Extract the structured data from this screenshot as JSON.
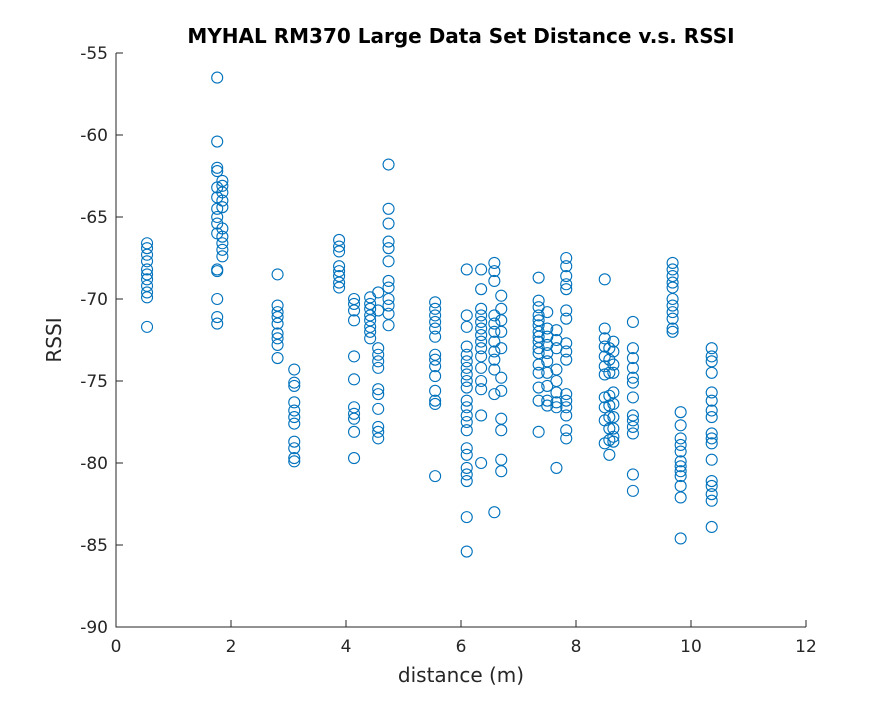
{
  "chart_data": {
    "type": "scatter",
    "title": "MYHAL RM370 Large Data Set Distance v.s. RSSI",
    "xlabel": "distance (m)",
    "ylabel": "RSSI",
    "xlim": [
      0,
      12
    ],
    "ylim": [
      -90,
      -55
    ],
    "x_ticks": [
      "0",
      "2",
      "4",
      "6",
      "8",
      "10",
      "12"
    ],
    "y_ticks": [
      "-55",
      "-60",
      "-65",
      "-70",
      "-75",
      "-80",
      "-85",
      "-90"
    ],
    "grid": false,
    "legend": "none",
    "marker": "open-circle",
    "color": "#0072BD",
    "series": [
      {
        "points": [
          [
            0.54,
            -66.6
          ],
          [
            0.54,
            -66.9
          ],
          [
            0.54,
            -67.3
          ],
          [
            0.54,
            -67.7
          ],
          [
            0.54,
            -68.2
          ],
          [
            0.54,
            -68.5
          ],
          [
            0.54,
            -68.8
          ],
          [
            0.54,
            -69.2
          ],
          [
            0.54,
            -69.6
          ],
          [
            0.54,
            -69.9
          ],
          [
            0.54,
            -71.7
          ],
          [
            1.76,
            -56.5
          ],
          [
            1.76,
            -60.4
          ],
          [
            1.76,
            -62.0
          ],
          [
            1.76,
            -62.2
          ],
          [
            1.76,
            -63.2
          ],
          [
            1.76,
            -63.8
          ],
          [
            1.76,
            -64.5
          ],
          [
            1.76,
            -65.0
          ],
          [
            1.76,
            -65.4
          ],
          [
            1.76,
            -66.0
          ],
          [
            1.76,
            -68.2
          ],
          [
            1.76,
            -68.3
          ],
          [
            1.76,
            -70.0
          ],
          [
            1.76,
            -71.1
          ],
          [
            1.76,
            -71.5
          ],
          [
            1.85,
            -62.8
          ],
          [
            1.85,
            -63.1
          ],
          [
            1.85,
            -63.5
          ],
          [
            1.85,
            -64.0
          ],
          [
            1.85,
            -64.4
          ],
          [
            1.85,
            -65.7
          ],
          [
            1.85,
            -66.2
          ],
          [
            1.85,
            -66.6
          ],
          [
            1.85,
            -67.0
          ],
          [
            1.85,
            -67.4
          ],
          [
            2.81,
            -68.5
          ],
          [
            2.81,
            -70.4
          ],
          [
            2.81,
            -70.8
          ],
          [
            2.81,
            -71.1
          ],
          [
            2.81,
            -71.5
          ],
          [
            2.81,
            -72.1
          ],
          [
            2.81,
            -72.4
          ],
          [
            2.81,
            -72.8
          ],
          [
            2.81,
            -73.6
          ],
          [
            3.1,
            -74.3
          ],
          [
            3.1,
            -75.1
          ],
          [
            3.1,
            -75.3
          ],
          [
            3.1,
            -76.3
          ],
          [
            3.1,
            -76.8
          ],
          [
            3.1,
            -77.2
          ],
          [
            3.1,
            -77.6
          ],
          [
            3.1,
            -78.7
          ],
          [
            3.1,
            -79.1
          ],
          [
            3.1,
            -79.7
          ],
          [
            3.1,
            -79.9
          ],
          [
            3.88,
            -66.4
          ],
          [
            3.88,
            -66.8
          ],
          [
            3.88,
            -67.1
          ],
          [
            3.88,
            -68.0
          ],
          [
            3.88,
            -68.3
          ],
          [
            3.88,
            -68.6
          ],
          [
            3.88,
            -69.0
          ],
          [
            3.88,
            -69.3
          ],
          [
            4.14,
            -70.0
          ],
          [
            4.14,
            -70.3
          ],
          [
            4.14,
            -70.7
          ],
          [
            4.14,
            -71.3
          ],
          [
            4.14,
            -73.5
          ],
          [
            4.14,
            -74.9
          ],
          [
            4.14,
            -76.6
          ],
          [
            4.14,
            -77.0
          ],
          [
            4.14,
            -77.3
          ],
          [
            4.14,
            -78.1
          ],
          [
            4.14,
            -79.7
          ],
          [
            4.42,
            -69.9
          ],
          [
            4.42,
            -70.3
          ],
          [
            4.42,
            -70.6
          ],
          [
            4.42,
            -71.0
          ],
          [
            4.42,
            -71.3
          ],
          [
            4.42,
            -71.7
          ],
          [
            4.42,
            -72.0
          ],
          [
            4.42,
            -72.4
          ],
          [
            4.56,
            -69.6
          ],
          [
            4.56,
            -70.7
          ],
          [
            4.56,
            -73.0
          ],
          [
            4.56,
            -73.4
          ],
          [
            4.56,
            -73.8
          ],
          [
            4.56,
            -74.2
          ],
          [
            4.56,
            -75.5
          ],
          [
            4.56,
            -75.8
          ],
          [
            4.56,
            -76.7
          ],
          [
            4.56,
            -77.8
          ],
          [
            4.56,
            -78.1
          ],
          [
            4.56,
            -78.5
          ],
          [
            4.74,
            -61.8
          ],
          [
            4.74,
            -64.5
          ],
          [
            4.74,
            -65.4
          ],
          [
            4.74,
            -66.5
          ],
          [
            4.74,
            -66.9
          ],
          [
            4.74,
            -67.7
          ],
          [
            4.74,
            -68.9
          ],
          [
            4.74,
            -69.3
          ],
          [
            4.74,
            -70.0
          ],
          [
            4.74,
            -70.4
          ],
          [
            4.74,
            -70.9
          ],
          [
            4.74,
            -71.6
          ],
          [
            5.55,
            -70.2
          ],
          [
            5.55,
            -70.6
          ],
          [
            5.55,
            -71.0
          ],
          [
            5.55,
            -71.4
          ],
          [
            5.55,
            -71.8
          ],
          [
            5.55,
            -72.3
          ],
          [
            5.55,
            -73.4
          ],
          [
            5.55,
            -73.7
          ],
          [
            5.55,
            -74.1
          ],
          [
            5.55,
            -74.7
          ],
          [
            5.55,
            -75.6
          ],
          [
            5.55,
            -76.2
          ],
          [
            5.55,
            -76.4
          ],
          [
            5.55,
            -80.8
          ],
          [
            6.1,
            -68.2
          ],
          [
            6.1,
            -71.0
          ],
          [
            6.1,
            -71.7
          ],
          [
            6.1,
            -72.9
          ],
          [
            6.1,
            -73.4
          ],
          [
            6.1,
            -73.8
          ],
          [
            6.1,
            -74.2
          ],
          [
            6.1,
            -74.6
          ],
          [
            6.1,
            -75.0
          ],
          [
            6.1,
            -75.4
          ],
          [
            6.1,
            -76.2
          ],
          [
            6.1,
            -76.6
          ],
          [
            6.1,
            -77.1
          ],
          [
            6.1,
            -77.5
          ],
          [
            6.1,
            -78.0
          ],
          [
            6.1,
            -79.1
          ],
          [
            6.1,
            -79.5
          ],
          [
            6.1,
            -80.3
          ],
          [
            6.1,
            -80.7
          ],
          [
            6.1,
            -81.1
          ],
          [
            6.1,
            -83.3
          ],
          [
            6.1,
            -85.4
          ],
          [
            6.35,
            -68.2
          ],
          [
            6.35,
            -69.4
          ],
          [
            6.35,
            -70.6
          ],
          [
            6.35,
            -71.0
          ],
          [
            6.35,
            -71.4
          ],
          [
            6.35,
            -71.8
          ],
          [
            6.35,
            -72.2
          ],
          [
            6.35,
            -72.6
          ],
          [
            6.35,
            -73.0
          ],
          [
            6.35,
            -73.5
          ],
          [
            6.35,
            -74.2
          ],
          [
            6.35,
            -75.0
          ],
          [
            6.35,
            -75.5
          ],
          [
            6.35,
            -77.1
          ],
          [
            6.35,
            -80.0
          ],
          [
            6.58,
            -67.8
          ],
          [
            6.58,
            -68.3
          ],
          [
            6.58,
            -68.9
          ],
          [
            6.58,
            -71.0
          ],
          [
            6.58,
            -71.5
          ],
          [
            6.58,
            -72.0
          ],
          [
            6.58,
            -72.6
          ],
          [
            6.58,
            -73.2
          ],
          [
            6.58,
            -73.7
          ],
          [
            6.58,
            -74.3
          ],
          [
            6.58,
            -75.8
          ],
          [
            6.58,
            -83.0
          ],
          [
            6.7,
            -69.8
          ],
          [
            6.7,
            -70.6
          ],
          [
            6.7,
            -71.3
          ],
          [
            6.7,
            -72.0
          ],
          [
            6.7,
            -73.0
          ],
          [
            6.7,
            -74.8
          ],
          [
            6.7,
            -75.6
          ],
          [
            6.7,
            -77.3
          ],
          [
            6.7,
            -78.0
          ],
          [
            6.7,
            -79.8
          ],
          [
            6.7,
            -80.5
          ],
          [
            7.35,
            -68.7
          ],
          [
            7.35,
            -70.1
          ],
          [
            7.35,
            -70.5
          ],
          [
            7.35,
            -71.0
          ],
          [
            7.35,
            -71.3
          ],
          [
            7.35,
            -71.6
          ],
          [
            7.35,
            -72.0
          ],
          [
            7.35,
            -72.3
          ],
          [
            7.35,
            -72.6
          ],
          [
            7.35,
            -73.0
          ],
          [
            7.35,
            -73.3
          ],
          [
            7.35,
            -74.0
          ],
          [
            7.35,
            -74.5
          ],
          [
            7.35,
            -75.4
          ],
          [
            7.35,
            -76.2
          ],
          [
            7.35,
            -78.1
          ],
          [
            7.5,
            -70.8
          ],
          [
            7.5,
            -71.8
          ],
          [
            7.5,
            -72.3
          ],
          [
            7.5,
            -72.8
          ],
          [
            7.5,
            -73.3
          ],
          [
            7.5,
            -73.8
          ],
          [
            7.5,
            -74.5
          ],
          [
            7.5,
            -75.3
          ],
          [
            7.5,
            -76.2
          ],
          [
            7.5,
            -76.5
          ],
          [
            7.66,
            -71.9
          ],
          [
            7.66,
            -72.5
          ],
          [
            7.66,
            -73.0
          ],
          [
            7.66,
            -74.3
          ],
          [
            7.66,
            -75.0
          ],
          [
            7.66,
            -75.7
          ],
          [
            7.66,
            -76.3
          ],
          [
            7.66,
            -76.6
          ],
          [
            7.66,
            -80.3
          ],
          [
            7.83,
            -67.5
          ],
          [
            7.83,
            -68.0
          ],
          [
            7.83,
            -68.6
          ],
          [
            7.83,
            -69.1
          ],
          [
            7.83,
            -69.4
          ],
          [
            7.83,
            -70.7
          ],
          [
            7.83,
            -71.2
          ],
          [
            7.83,
            -72.7
          ],
          [
            7.83,
            -73.2
          ],
          [
            7.83,
            -73.7
          ],
          [
            7.83,
            -75.8
          ],
          [
            7.83,
            -76.2
          ],
          [
            7.83,
            -76.6
          ],
          [
            7.83,
            -77.1
          ],
          [
            7.83,
            -78.0
          ],
          [
            7.83,
            -78.5
          ],
          [
            8.5,
            -68.8
          ],
          [
            8.5,
            -71.8
          ],
          [
            8.5,
            -72.4
          ],
          [
            8.5,
            -72.9
          ],
          [
            8.5,
            -73.5
          ],
          [
            8.5,
            -74.1
          ],
          [
            8.5,
            -74.6
          ],
          [
            8.5,
            -76.0
          ],
          [
            8.5,
            -76.6
          ],
          [
            8.5,
            -77.4
          ],
          [
            8.5,
            -78.8
          ],
          [
            8.58,
            -73.0
          ],
          [
            8.58,
            -73.7
          ],
          [
            8.58,
            -74.5
          ],
          [
            8.58,
            -75.9
          ],
          [
            8.58,
            -76.5
          ],
          [
            8.58,
            -77.2
          ],
          [
            8.58,
            -77.9
          ],
          [
            8.58,
            -78.6
          ],
          [
            8.58,
            -79.5
          ],
          [
            8.65,
            -72.6
          ],
          [
            8.65,
            -73.2
          ],
          [
            8.65,
            -74.0
          ],
          [
            8.65,
            -74.5
          ],
          [
            8.65,
            -75.7
          ],
          [
            8.65,
            -76.4
          ],
          [
            8.65,
            -77.2
          ],
          [
            8.65,
            -77.9
          ],
          [
            8.65,
            -78.4
          ],
          [
            8.65,
            -78.7
          ],
          [
            8.99,
            -71.4
          ],
          [
            8.99,
            -73.0
          ],
          [
            8.99,
            -73.6
          ],
          [
            8.99,
            -74.2
          ],
          [
            8.99,
            -74.8
          ],
          [
            8.99,
            -75.1
          ],
          [
            8.99,
            -76.0
          ],
          [
            8.99,
            -77.1
          ],
          [
            8.99,
            -77.4
          ],
          [
            8.99,
            -77.8
          ],
          [
            8.99,
            -78.2
          ],
          [
            8.99,
            -80.7
          ],
          [
            8.99,
            -81.7
          ],
          [
            9.68,
            -67.8
          ],
          [
            9.68,
            -68.2
          ],
          [
            9.68,
            -68.6
          ],
          [
            9.68,
            -69.0
          ],
          [
            9.68,
            -69.3
          ],
          [
            9.68,
            -70.0
          ],
          [
            9.68,
            -70.4
          ],
          [
            9.68,
            -70.8
          ],
          [
            9.68,
            -71.2
          ],
          [
            9.68,
            -71.8
          ],
          [
            9.68,
            -72.0
          ],
          [
            9.82,
            -76.9
          ],
          [
            9.82,
            -77.7
          ],
          [
            9.82,
            -78.5
          ],
          [
            9.82,
            -78.9
          ],
          [
            9.82,
            -79.3
          ],
          [
            9.82,
            -79.9
          ],
          [
            9.82,
            -80.2
          ],
          [
            9.82,
            -80.5
          ],
          [
            9.82,
            -80.8
          ],
          [
            9.82,
            -81.4
          ],
          [
            9.82,
            -82.1
          ],
          [
            9.82,
            -84.6
          ],
          [
            10.36,
            -73.0
          ],
          [
            10.36,
            -73.5
          ],
          [
            10.36,
            -73.8
          ],
          [
            10.36,
            -74.5
          ],
          [
            10.36,
            -75.7
          ],
          [
            10.36,
            -76.2
          ],
          [
            10.36,
            -76.8
          ],
          [
            10.36,
            -77.2
          ],
          [
            10.36,
            -78.2
          ],
          [
            10.36,
            -78.5
          ],
          [
            10.36,
            -78.8
          ],
          [
            10.36,
            -79.8
          ],
          [
            10.36,
            -81.1
          ],
          [
            10.36,
            -81.4
          ],
          [
            10.36,
            -81.9
          ],
          [
            10.36,
            -82.3
          ],
          [
            10.36,
            -83.9
          ]
        ]
      }
    ]
  }
}
